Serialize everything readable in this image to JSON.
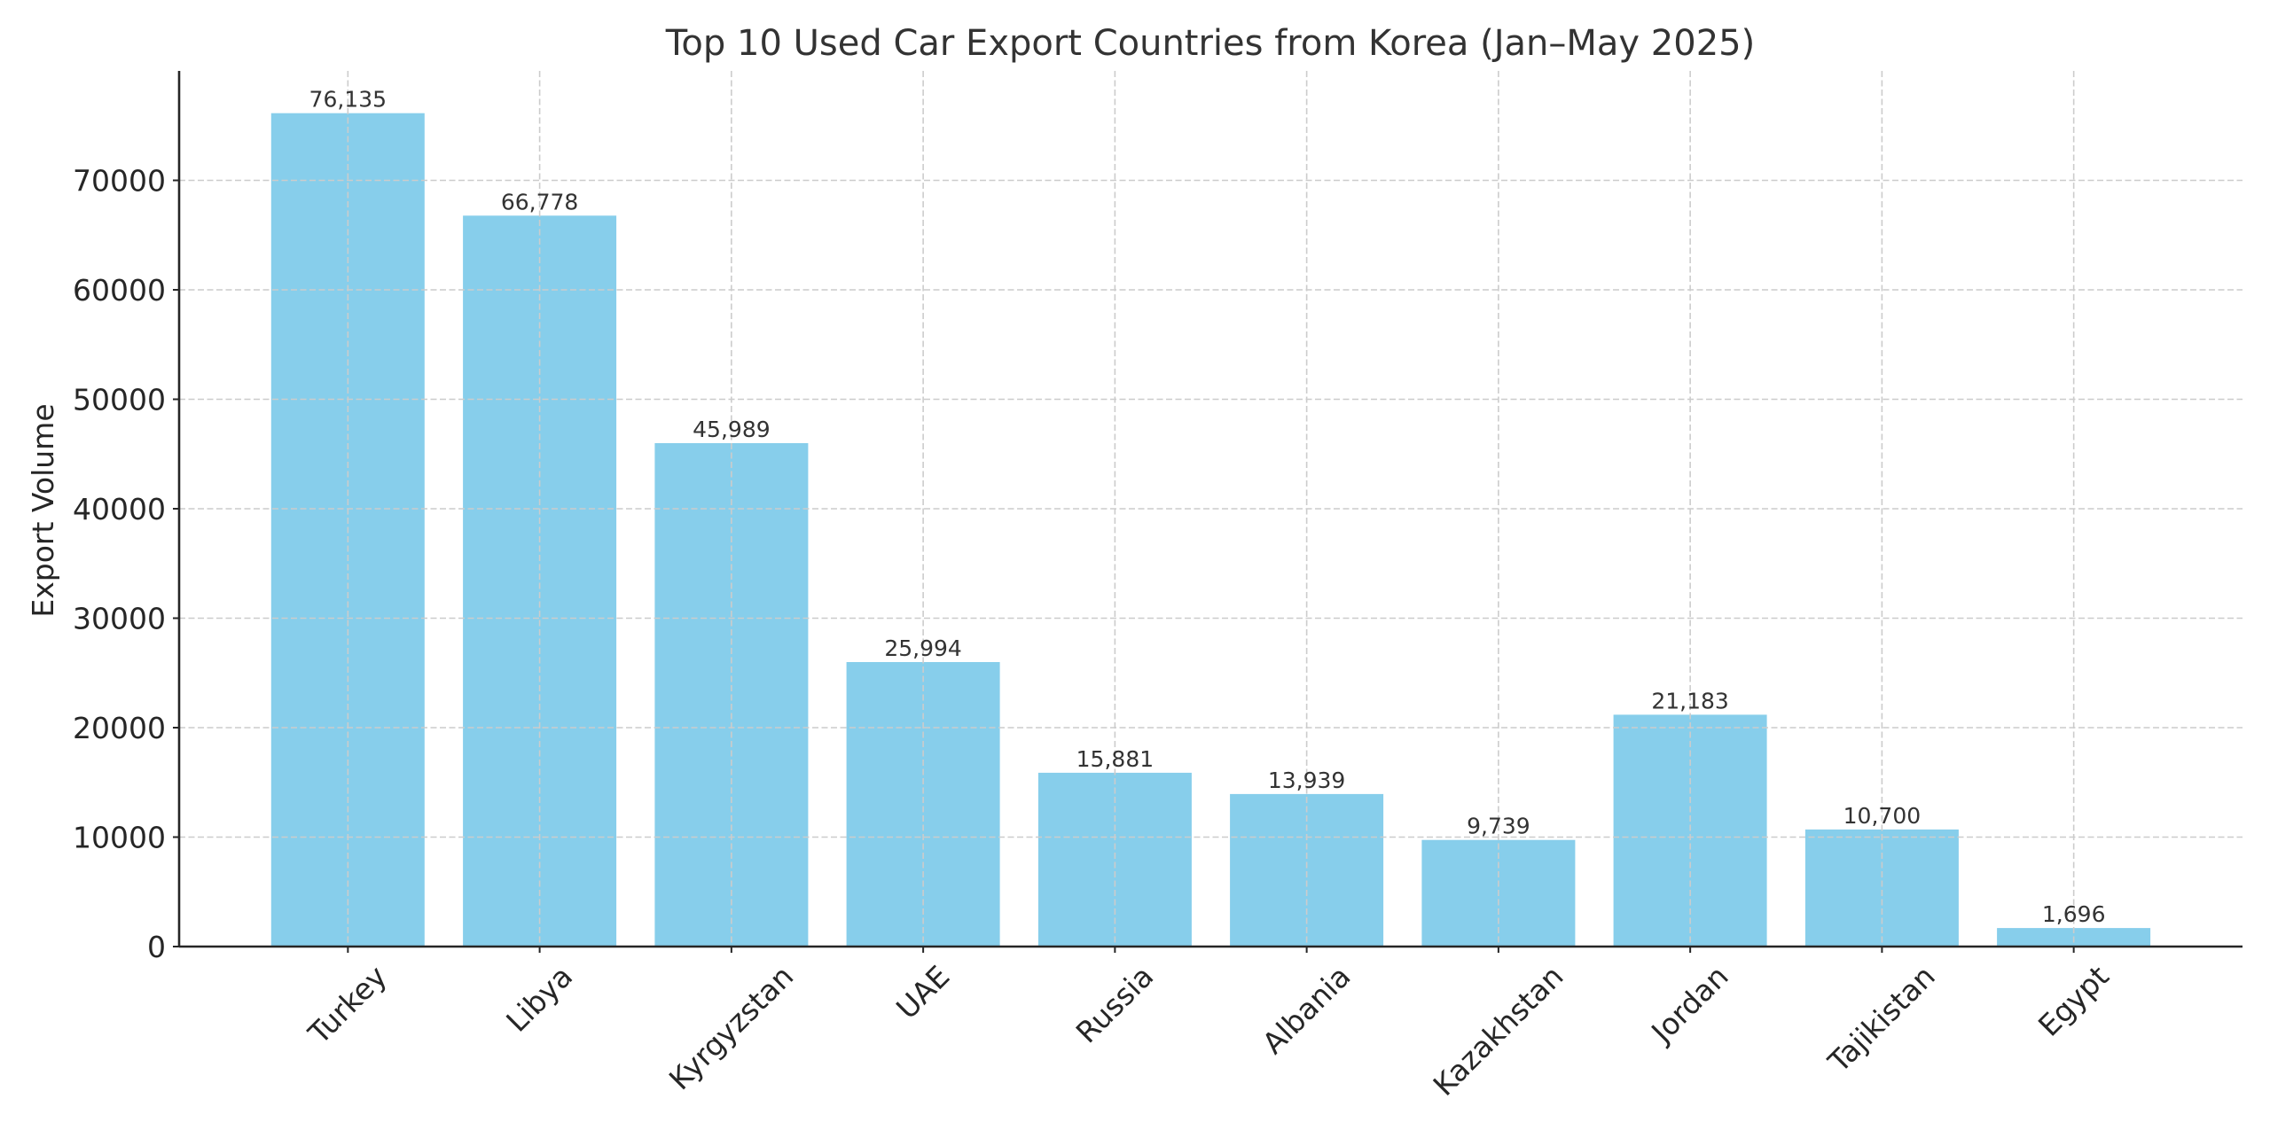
{
  "chart_data": {
    "type": "bar",
    "title": "Top 10 Used Car Export Countries from Korea (Jan–May 2025)",
    "xlabel": "",
    "ylabel": "Export Volume",
    "categories": [
      "Turkey",
      "Libya",
      "Kyrgyzstan",
      "UAE",
      "Russia",
      "Albania",
      "Kazakhstan",
      "Jordan",
      "Tajikistan",
      "Egypt"
    ],
    "values": [
      76135,
      66778,
      45989,
      25994,
      15881,
      13939,
      9739,
      21183,
      10700,
      1696
    ],
    "value_labels": [
      "76,135",
      "66,778",
      "45,989",
      "25,994",
      "15,881",
      "13,939",
      "9,739",
      "21,183",
      "10,700",
      "1,696"
    ],
    "ylim": [
      0,
      80000
    ],
    "yticks": [
      0,
      10000,
      20000,
      30000,
      40000,
      50000,
      60000,
      70000
    ],
    "ytick_labels": [
      "0",
      "10000",
      "20000",
      "30000",
      "40000",
      "50000",
      "60000",
      "70000"
    ],
    "xtick_rotation": 45,
    "grid": true,
    "grid_style": "dashed",
    "legend": null,
    "bar_color": "#87CEEB",
    "grid_color": "#cccccc",
    "text_color": "#333333"
  }
}
